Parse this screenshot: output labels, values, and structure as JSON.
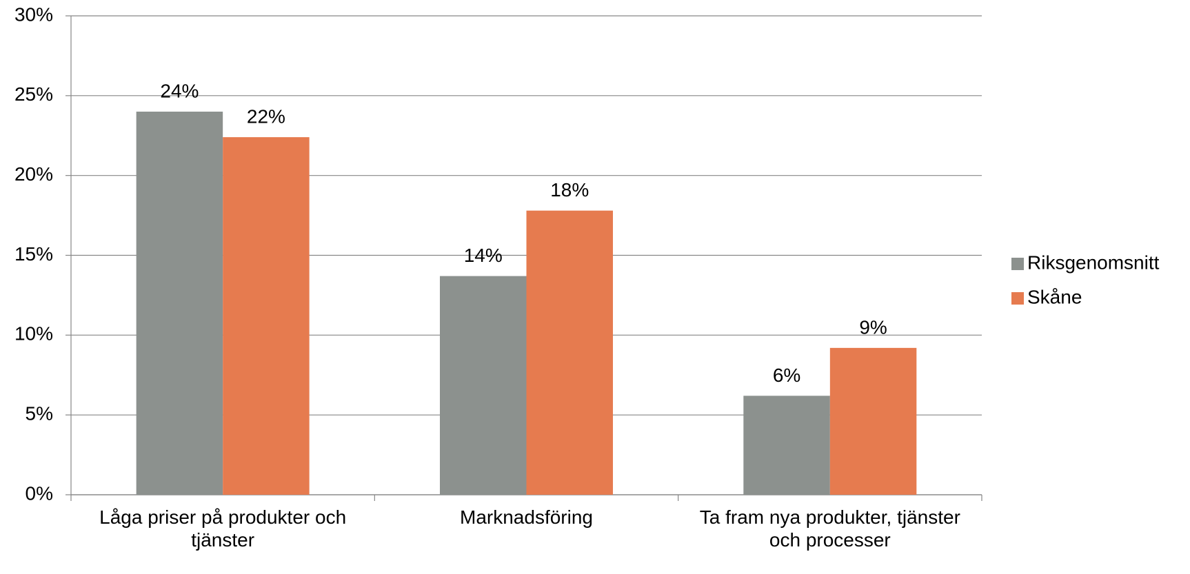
{
  "chart_data": {
    "type": "bar",
    "categories": [
      "Låga priser på produkter och tjänster",
      "Marknadsföring",
      "Ta fram nya produkter, tjänster och processer"
    ],
    "series": [
      {
        "name": "Riksgenomsnitt",
        "color": "#8c918e",
        "values": [
          24.0,
          13.7,
          6.2
        ],
        "value_labels": [
          "24%",
          "14%",
          "6%"
        ]
      },
      {
        "name": "Skåne",
        "color": "#e67b4f",
        "values": [
          22.4,
          17.8,
          9.2
        ],
        "value_labels": [
          "22%",
          "18%",
          "9%"
        ]
      }
    ],
    "ylim": [
      0,
      30
    ],
    "yticks": [
      {
        "value": 0,
        "label": "0%"
      },
      {
        "value": 5,
        "label": "5%"
      },
      {
        "value": 10,
        "label": "10%"
      },
      {
        "value": 15,
        "label": "15%"
      },
      {
        "value": 20,
        "label": "20%"
      },
      {
        "value": 25,
        "label": "25%"
      },
      {
        "value": 30,
        "label": "30%"
      }
    ],
    "grid": true,
    "legend": "right"
  }
}
